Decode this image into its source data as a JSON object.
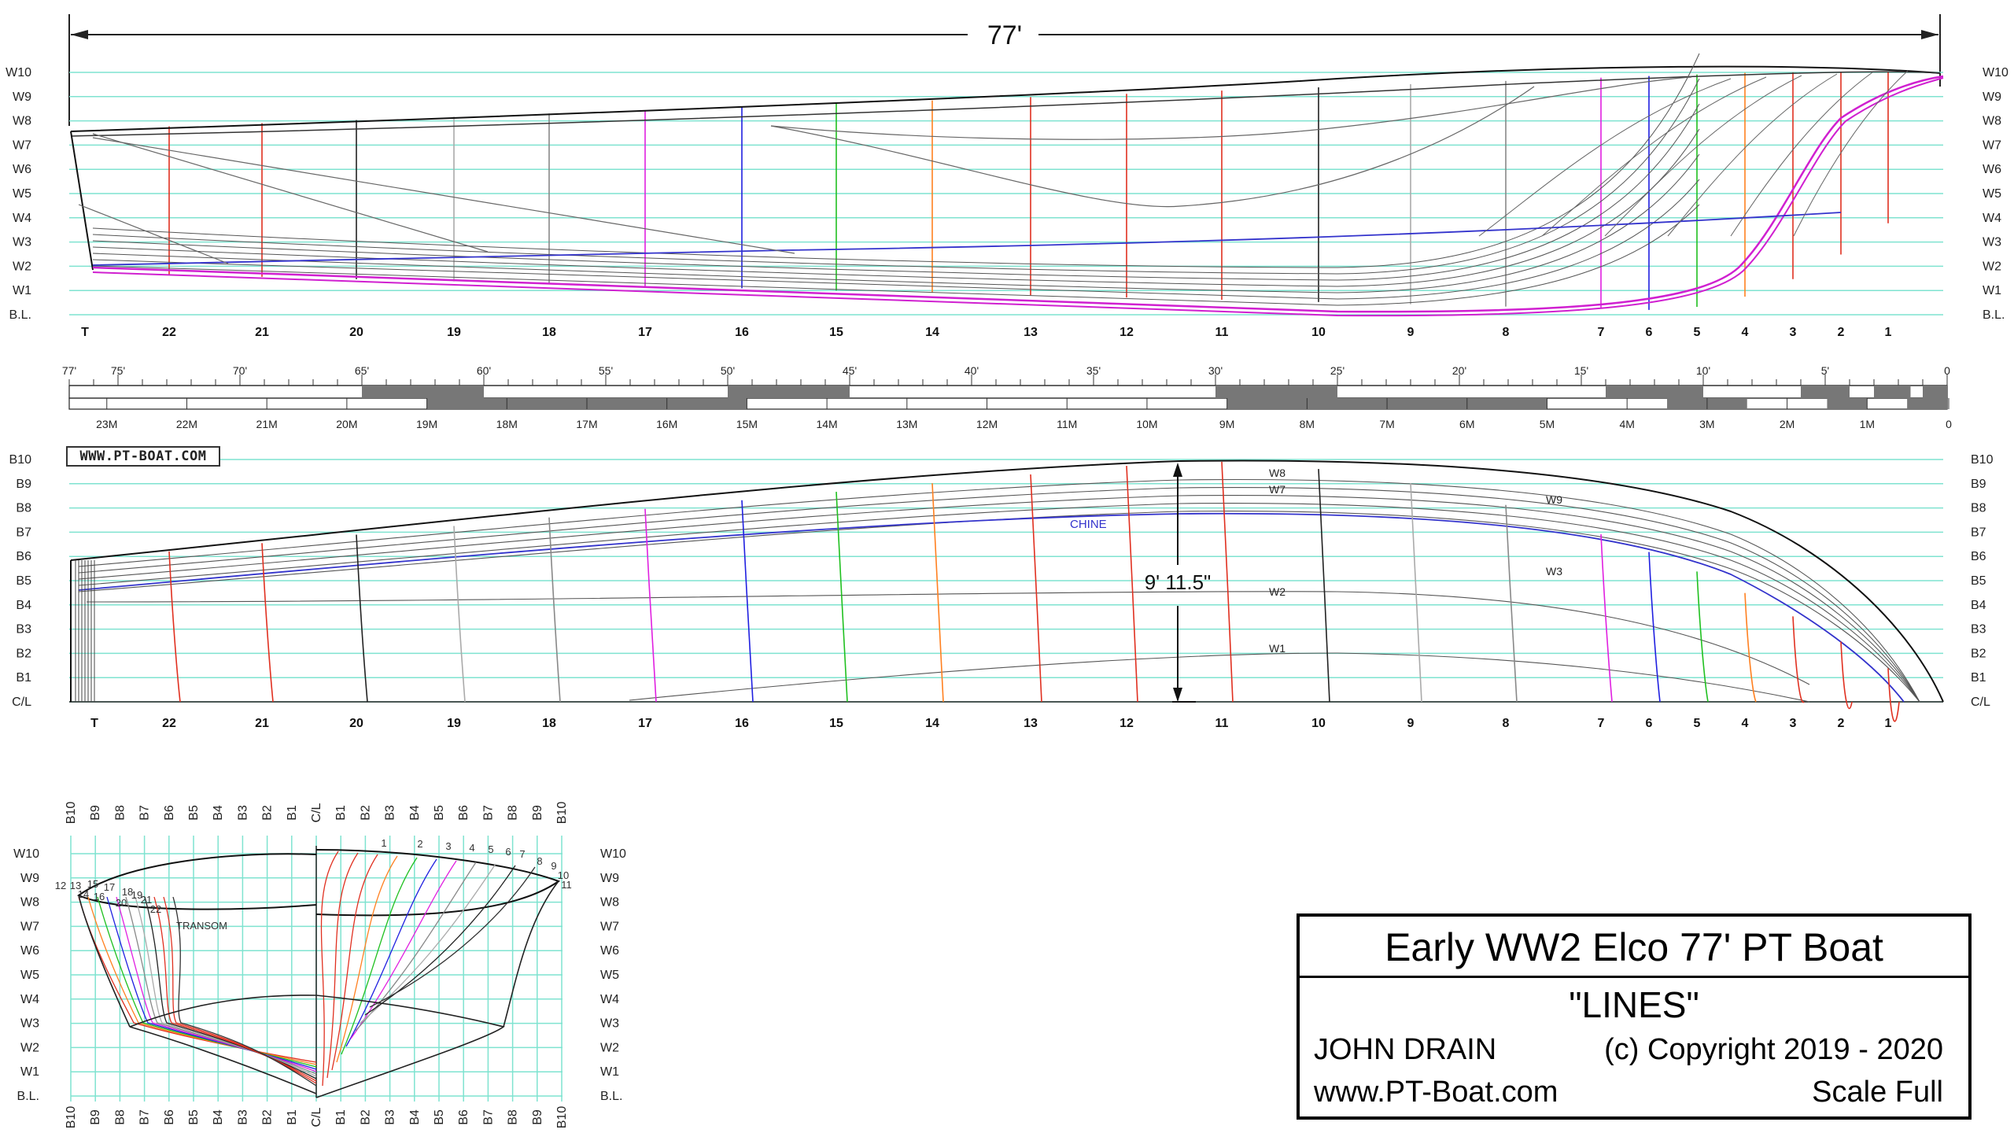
{
  "overall_length": "77'",
  "mid_height": "9' 11.5\"",
  "waterlines": [
    "B.L.",
    "W1",
    "W2",
    "W3",
    "W4",
    "W5",
    "W6",
    "W7",
    "W8",
    "W9",
    "W10"
  ],
  "buttocks": [
    "C/L",
    "B1",
    "B2",
    "B3",
    "B4",
    "B5",
    "B6",
    "B7",
    "B8",
    "B9",
    "B10"
  ],
  "stations": [
    "T",
    "22",
    "21",
    "20",
    "19",
    "18",
    "17",
    "16",
    "15",
    "14",
    "13",
    "12",
    "11",
    "10",
    "9",
    "8",
    "7",
    "6",
    "5",
    "4",
    "3",
    "2",
    "1"
  ],
  "feet_marks": [
    "77'",
    "75'",
    "70'",
    "65'",
    "60'",
    "55'",
    "50'",
    "45'",
    "40'",
    "35'",
    "30'",
    "25'",
    "20'",
    "15'",
    "10'",
    "5'",
    "0"
  ],
  "meter_marks": [
    "23M",
    "22M",
    "21M",
    "20M",
    "19M",
    "18M",
    "17M",
    "16M",
    "15M",
    "14M",
    "13M",
    "12M",
    "11M",
    "10M",
    "9M",
    "8M",
    "7M",
    "6M",
    "5M",
    "4M",
    "3M",
    "2M",
    "1M",
    "0"
  ],
  "plan_labels": {
    "chine": "CHINE",
    "w8": "W8",
    "w7": "W7",
    "w9": "W9",
    "w3": "W3",
    "w2": "W2",
    "w1": "W1"
  },
  "body_labels": {
    "transom": "TRANSOM",
    "aft_stations": [
      "12",
      "13",
      "15",
      "17",
      "14",
      "16",
      "18",
      "19",
      "20",
      "21",
      "22"
    ],
    "fwd_stations": [
      "1",
      "2",
      "3",
      "4",
      "5",
      "6",
      "7",
      "8",
      "9",
      "10",
      "11"
    ]
  },
  "logo": "WWW.PT-BOAT.COM",
  "title_block": {
    "title": "Early WW2 Elco 77' PT Boat",
    "subtitle": "\"LINES\"",
    "author": "JOHN DRAIN",
    "copyright": "(c) Copyright 2019 - 2020",
    "website": "www.PT-Boat.com",
    "scale": "Scale Full"
  },
  "colors": {
    "grid": "#7fe3d0",
    "hull": "#111111",
    "chine": "#3333cc",
    "keel": "#d020d0"
  }
}
